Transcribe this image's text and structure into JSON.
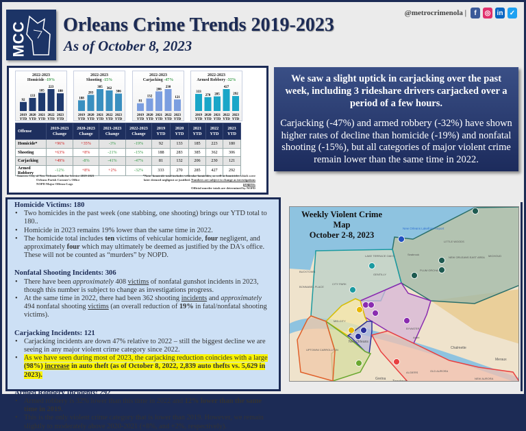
{
  "header": {
    "logo_text": "MCC",
    "title": "Orleans Crime Trends 2019-2023",
    "subtitle": "As of October 8, 2023",
    "handle": "@metrocrimenola |",
    "social": [
      {
        "icon": "facebook-icon",
        "glyph": "f",
        "color": "#3b5998"
      },
      {
        "icon": "instagram-icon",
        "glyph": "◎",
        "color": "#e1306c"
      },
      {
        "icon": "linkedin-icon",
        "glyph": "in",
        "color": "#0a66c2"
      },
      {
        "icon": "twitter-icon",
        "glyph": "✓",
        "color": "#1da1f2"
      }
    ]
  },
  "chart_data": [
    {
      "type": "bar",
      "title": "2022-2023",
      "subtitle": "Homicide",
      "change": "-19%",
      "categories": [
        "2019 YTD",
        "2020 YTD",
        "2021 YTD",
        "2022 YTD",
        "2023 YTD"
      ],
      "values": [
        92,
        133,
        185,
        223,
        180
      ],
      "color": "#1f3a6e"
    },
    {
      "type": "bar",
      "title": "2022-2023",
      "subtitle": "Shooting",
      "change": "-15%",
      "categories": [
        "2019 YTD",
        "2020 YTD",
        "2021 YTD",
        "2022 YTD",
        "2023 YTD"
      ],
      "values": [
        188,
        283,
        385,
        362,
        306
      ],
      "color": "#3a8fc0"
    },
    {
      "type": "bar",
      "title": "2022-2023",
      "subtitle": "Carjacking",
      "change": "-47%",
      "categories": [
        "2019 YTD",
        "2020 YTD",
        "2021 YTD",
        "2022 YTD",
        "2023 YTD"
      ],
      "values": [
        81,
        132,
        206,
        230,
        121
      ],
      "color": "#7b9ee0"
    },
    {
      "type": "bar",
      "title": "2022-2023",
      "subtitle": "Armed Robbery",
      "change": "-32%",
      "categories": [
        "2019 YTD",
        "2020 YTD",
        "2021 YTD",
        "2022 YTD",
        "2023 YTD"
      ],
      "values": [
        333,
        270,
        285,
        427,
        292
      ],
      "color": "#1aa6c8"
    }
  ],
  "table": {
    "headers": [
      "Offense",
      "2019-2023 Change",
      "2020-2023 Change",
      "2021-2023 Change",
      "2022-2023 Change",
      "2019 YTD",
      "2020 YTD",
      "2021 YTD",
      "2022 YTD",
      "2023 YTD"
    ],
    "rows": [
      [
        "Homicide*",
        "+96%",
        "+35%",
        "-3%",
        "-19%",
        "92",
        "133",
        "185",
        "223",
        "180"
      ],
      [
        "Shooting",
        "+63%",
        "+8%",
        "-21%",
        "-15%",
        "188",
        "283",
        "385",
        "362",
        "306"
      ],
      [
        "Carjacking",
        "+49%",
        "-8%",
        "-41%",
        "-47%",
        "81",
        "132",
        "206",
        "230",
        "121"
      ],
      [
        "Armed Robbery",
        "-12%",
        "+8%",
        "+2%",
        "-32%",
        "333",
        "270",
        "285",
        "427",
        "292"
      ]
    ]
  },
  "sources": [
    "Sources: City of New Orleans Calls for Service 2019-2023",
    "Orleans Parish Coroner's Office",
    "NOPD Major Offense Logs"
  ],
  "footnote": {
    "text": "*Note: homicide total includes vehicular homicides, as well as homicides which were later deemed negligent or justified.",
    "underlined": "Numbers are subject to change as investigations progress.",
    "official": "Official murder totals are determined by NOPD"
  },
  "callout": {
    "headline": "We saw a slight uptick in carjacking over the past week, including 3 rideshare drivers carjacked over a period of a few hours.",
    "body": "Carjacking (-47%) and armed robbery (-32%) have shown higher rates of decline than homicide (-19%) and nonfatal shooting (-15%), but all categories of major violent crime remain lower than the same time in 2022."
  },
  "notes": {
    "homicide": {
      "title": "Homicide Victims: 180",
      "b1": "Two homicides in the past week (one stabbing, one shooting) brings our YTD total to 180..",
      "b2": "Homicide in 2023 remains 19% lower than the same time in 2022.",
      "b3a": "The homicide total includes ",
      "b3b": "ten",
      "b3c": " victims of vehicular homicide, ",
      "b3d": "four",
      "b3e": " negligent, and approximately ",
      "b3f": "four",
      "b3g": " which may ultimately be deemed as justified by the DA's office.  These will not be counted as “murders” by NOPD."
    },
    "shooting": {
      "title": "Nonfatal Shooting Incidents",
      "count": ": 306",
      "b1a": "There have been ",
      "b1b": "approximately",
      "b1c": " 408 ",
      "b1d": "victims",
      "b1e": " of nonfatal gunshot incidents in 2023, though this number is subject to change as investigations progress.",
      "b2a": "At the same time in 2022, there had been 362 shooting ",
      "b2b": "incidents",
      "b2c": " and ",
      "b2d": "approximately",
      "b2e": " 494 nonfatal shooting ",
      "b2f": "victims",
      "b2g": " (an overall reduction of ",
      "b2h": "19%",
      "b2i": " in fatal/nonfatal shooting victims)."
    },
    "carjacking": {
      "title": "Carjacking Incidents: 121",
      "b1": "Carjacking incidents are down 47% relative to 2022 – still the biggest decline we are seeing in any major violent crime category since 2022.",
      "b2a": "As we have seen during most of 2023, the carjacking reduction coincides with a large ",
      "b2b": "(98%)",
      "b2c": "increase",
      "b2d": " in auto theft (as of October 8, 2022, 2,839 auto thefts vs. 5,629 in 2023)."
    },
    "robbery": {
      "title": "Armed Robbery Incidents: 292",
      "b1a": "Armed robbery is 32% lower than this time in 2022 and ",
      "b1b": "12% lower than the same time in 2019",
      "b1c": ".",
      "b2": "This is the only violent crime category that is lower than 2019. However, we remain slightly to moderately above 2020-2021 (+8%, and +2%, respectively)."
    }
  },
  "map": {
    "title": "Weekly Violent Crime Map",
    "dates": "October 2-8, 2023",
    "labels": [
      "New Orleans Lakefront Airport",
      "LITTLE WOODS",
      "Seabrook",
      "NEW ORLEANS EAST AREA",
      "MICHOUD",
      "PLUM ORCHARD",
      "LAKE TERRACE OAKS",
      "GENTILLY",
      "CITY PARK",
      "BUCKTOWN",
      "BONNABEL PLACE",
      "MID-CITY",
      "BYWATER",
      "New Orleans",
      "UPTOWN/ CARROLLTON",
      "Chalmette",
      "Meraux",
      "Arabi",
      "ALGIERS",
      "OLD AURORA",
      "Gretna",
      "Terrytown",
      "NEW AURORA"
    ]
  }
}
